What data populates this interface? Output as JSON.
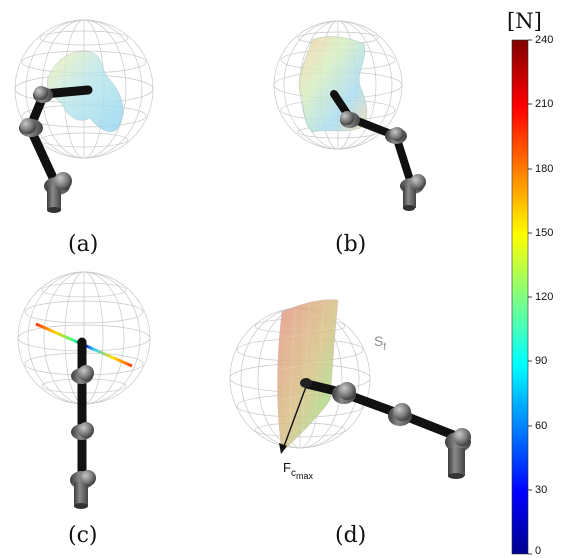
{
  "panels": [
    {
      "id": "a",
      "label": "(a)"
    },
    {
      "id": "b",
      "label": "(b)"
    },
    {
      "id": "c",
      "label": "(c)"
    },
    {
      "id": "d",
      "label": "(d)"
    }
  ],
  "colorbar": {
    "unit": "[N]",
    "min": 0,
    "max": 240,
    "ticks": [
      "240",
      "210",
      "180",
      "150",
      "120",
      "90",
      "60",
      "30",
      "0"
    ],
    "colormap": "jet"
  },
  "annotations": {
    "surface_label": "S",
    "surface_label_sub": "f",
    "force_label": "F",
    "force_label_sub": "c",
    "force_label_subsub": "max"
  }
}
